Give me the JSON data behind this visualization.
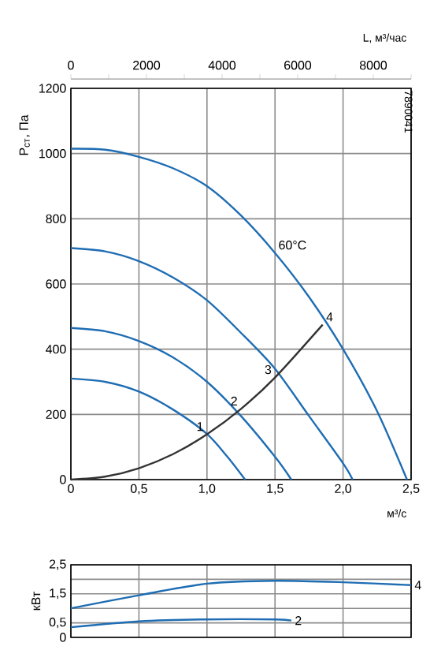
{
  "chart_data": [
    {
      "type": "line",
      "xlabel": "м³/с",
      "ylabel": "P$_{ст}$, Па",
      "x2label": "L, м³/час",
      "xlim": [
        0,
        2.5
      ],
      "ylim": [
        0,
        1200
      ],
      "x2lim": [
        0,
        9000
      ],
      "xticks": [
        {
          "value": 0,
          "label": "0"
        },
        {
          "value": 0.5,
          "label": "0,5"
        },
        {
          "value": 1,
          "label": "1,0"
        },
        {
          "value": 1.5,
          "label": "1,5"
        },
        {
          "value": 2,
          "label": "2,0"
        },
        {
          "value": 2.5,
          "label": "2,5"
        }
      ],
      "yticks": [
        0,
        200,
        400,
        600,
        800,
        1000,
        1200
      ],
      "x2ticks": [
        0,
        {
          "value": 1000,
          "label": null
        },
        2000,
        {
          "value": 3000,
          "label": null
        },
        4000,
        {
          "value": 5000,
          "label": null
        },
        6000,
        {
          "value": 7000,
          "label": null
        },
        8000,
        {
          "value": 9000,
          "label": null
        }
      ],
      "grid": true,
      "series": [
        {
          "color": "#1f6db3",
          "x": [
            0,
            0.25,
            0.5,
            0.75,
            1.0,
            1.25,
            1.5,
            1.75,
            2.0,
            2.25,
            2.47
          ],
          "values": [
            1015,
            1012,
            990,
            955,
            900,
            810,
            695,
            560,
            400,
            210,
            0
          ]
        },
        {
          "color": "#1f6db3",
          "x": [
            0,
            0.25,
            0.5,
            0.75,
            1.0,
            1.25,
            1.5,
            1.75,
            2.0,
            2.07
          ],
          "values": [
            710,
            700,
            670,
            620,
            550,
            450,
            340,
            195,
            50,
            0
          ]
        },
        {
          "color": "#1f6db3",
          "x": [
            0,
            0.25,
            0.5,
            0.75,
            1.0,
            1.25,
            1.5,
            1.62
          ],
          "values": [
            465,
            455,
            425,
            375,
            300,
            195,
            70,
            0
          ]
        },
        {
          "color": "#1f6db3",
          "x": [
            0,
            0.25,
            0.5,
            0.75,
            1.0,
            1.15,
            1.28
          ],
          "values": [
            310,
            300,
            270,
            215,
            140,
            70,
            0
          ]
        },
        {
          "color": "#333333",
          "x": [
            0,
            0.25,
            0.5,
            0.75,
            1.0,
            1.25,
            1.5,
            1.85
          ],
          "values": [
            0,
            9,
            35,
            78,
            139,
            217,
            313,
            475
          ]
        }
      ],
      "annotations": [
        {
          "text": "60°C",
          "x": 1.5,
          "y": 695
        },
        {
          "text": "1",
          "x": 1.0,
          "y": 139
        },
        {
          "text": "2",
          "x": 1.25,
          "y": 217
        },
        {
          "text": "3",
          "x": 1.5,
          "y": 313
        },
        {
          "text": "4",
          "x": 1.85,
          "y": 475
        },
        "7890041"
      ]
    },
    {
      "type": "line",
      "ylabel": "кВт",
      "xlim": [
        0,
        2.5
      ],
      "ylim": [
        0,
        2.5
      ],
      "xticks": [
        0,
        0.5,
        1,
        1.5,
        2,
        2.5
      ],
      "yticks": [
        {
          "value": 0,
          "label": "0"
        },
        {
          "value": 0.5,
          "label": "0,5"
        },
        {
          "value": 1,
          "label": null
        },
        {
          "value": 1.5,
          "label": "1,5"
        },
        {
          "value": 2,
          "label": null
        },
        {
          "value": 2.5,
          "label": "2,5"
        }
      ],
      "tick_labels": "y",
      "grid": true,
      "series": [
        {
          "color": "#1f6db3",
          "x": [
            0,
            0.5,
            1.0,
            1.5,
            2.0,
            2.5
          ],
          "values": [
            1.0,
            1.45,
            1.85,
            1.95,
            1.9,
            1.8
          ]
        },
        {
          "color": "#1f6db3",
          "x": [
            0,
            0.5,
            1.0,
            1.5,
            1.62
          ],
          "values": [
            0.35,
            0.55,
            0.62,
            0.62,
            0.58
          ]
        }
      ],
      "annotations": [
        {
          "text": "4",
          "x": 2.5,
          "y": 1.8
        },
        {
          "text": "2",
          "x": 1.62,
          "y": 0.58
        }
      ]
    }
  ]
}
